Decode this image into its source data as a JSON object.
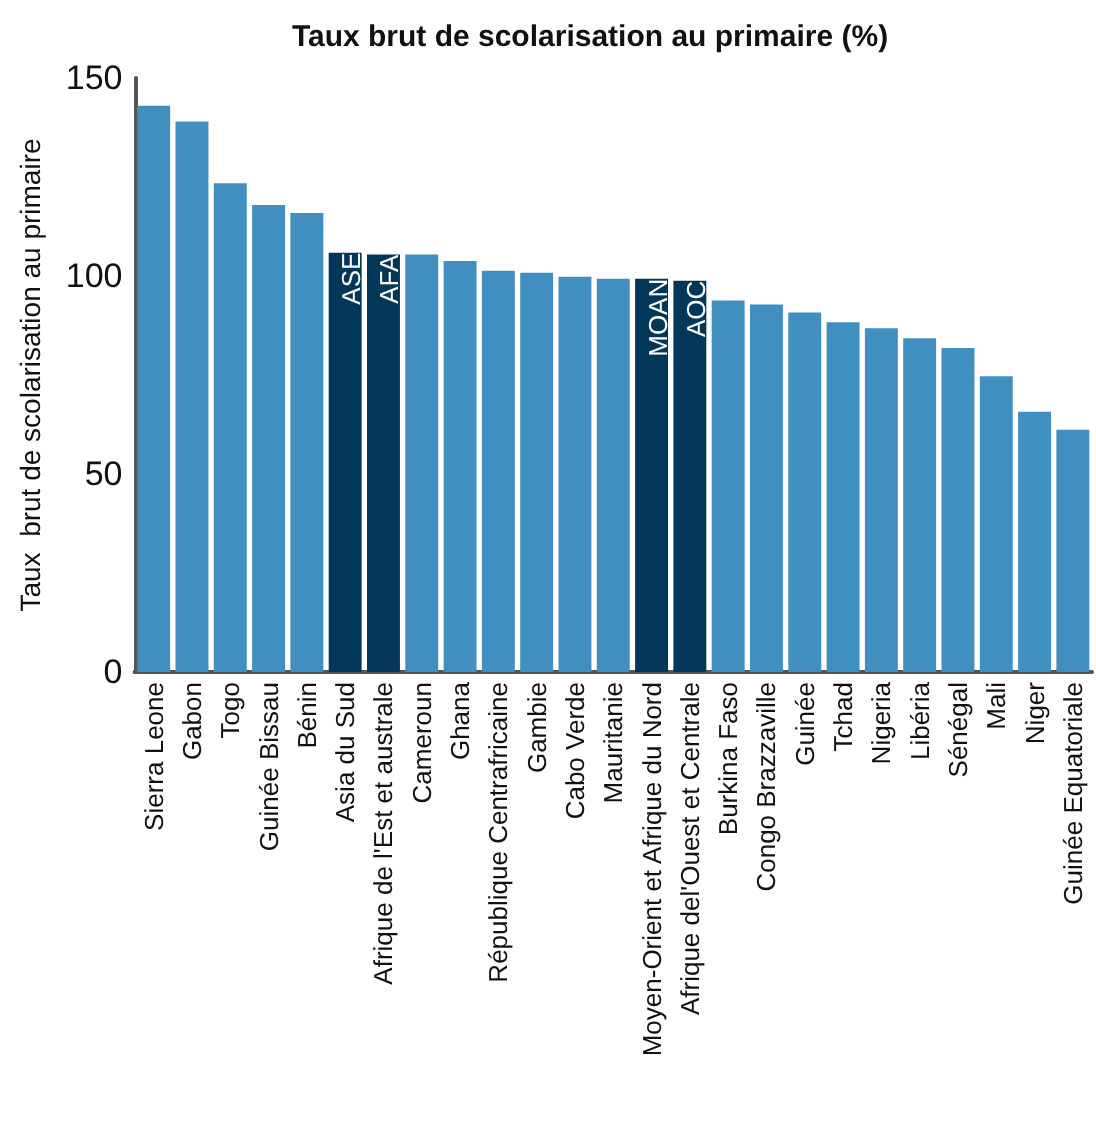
{
  "chart_data": {
    "type": "bar",
    "title": "Taux brut de scolarisation au primaire (%)",
    "ylabel": "Taux  brut de scolarisation au primaire",
    "categories": [
      "Sierra Leone",
      "Gabon",
      "Togo",
      "Guinée Bissau",
      "Bénin",
      "Asia du Sud",
      "Afrique de l'Est et australe",
      "Cameroun",
      "Ghana",
      "République Centrafricaine",
      "Gambie",
      "Cabo Verde",
      "Mauritanie",
      "Moyen-Orient et Afrique du Nord",
      "Afrique del'Ouest et Centrale",
      "Burkina Faso",
      "Congo Brazzaville",
      "Guinée",
      "Tchad",
      "Nigeria",
      "Libéria",
      "Sénégal",
      "Mali",
      "Niger",
      "Guinée Equatoriale"
    ],
    "values": [
      143,
      139,
      123.4,
      117.9,
      115.9,
      105.9,
      105.4,
      105.4,
      103.8,
      101.3,
      100.8,
      99.8,
      99.3,
      99.3,
      98.8,
      93.8,
      92.8,
      90.8,
      88.3,
      86.8,
      84.3,
      81.8,
      74.7,
      65.7,
      61.2
    ],
    "colors": [
      "#418fc0",
      "#418fc0",
      "#418fc0",
      "#418fc0",
      "#418fc0",
      "#03375a",
      "#03375a",
      "#418fc0",
      "#418fc0",
      "#418fc0",
      "#418fc0",
      "#418fc0",
      "#418fc0",
      "#03375a",
      "#03375a",
      "#418fc0",
      "#418fc0",
      "#418fc0",
      "#418fc0",
      "#418fc0",
      "#418fc0",
      "#418fc0",
      "#418fc0",
      "#418fc0",
      "#418fc0"
    ],
    "annotations": [
      {
        "text": "ASE",
        "x": "Asia du Sud",
        "y": 105.9
      },
      {
        "text": "AFA",
        "x": "Afrique de l'Est et australe",
        "y": 105.4
      },
      {
        "text": "MOAN",
        "x": "Moyen-Orient et Afrique du Nord",
        "y": 99.3
      },
      {
        "text": "AOC",
        "x": "Afrique del'Ouest et Centrale",
        "y": 98.8
      }
    ],
    "ylim": [
      0,
      150
    ],
    "yticks": [
      0,
      50,
      100,
      150
    ],
    "grid": false
  }
}
